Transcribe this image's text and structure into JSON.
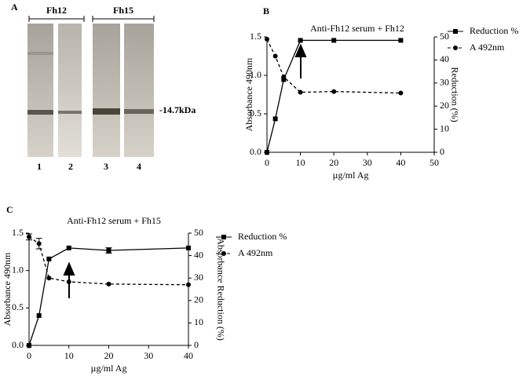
{
  "figure": {
    "panels": {
      "a": "A"
    },
    "gel": {
      "groups": [
        "Fh12",
        "Fh15"
      ],
      "lanes": [
        "1",
        "2",
        "3",
        "4"
      ],
      "marker": "-14.7kDa"
    }
  },
  "chart_data": [
    {
      "type": "line",
      "panel": "B",
      "title": "Anti-Fh12 serum + Fh12",
      "xlabel": "µg/ml Ag",
      "ylabel": "Absorbance 490nm",
      "y2label": "Reduction (%)",
      "x": [
        0,
        2.5,
        5,
        10,
        20,
        40
      ],
      "xlim": [
        0,
        50
      ],
      "xticks": [
        0,
        10,
        20,
        30,
        40,
        50
      ],
      "ylim": [
        0,
        1.5
      ],
      "yticks": [
        {
          "value": 0,
          "label": "0.0"
        },
        {
          "value": 0.5,
          "label": "0.5"
        },
        {
          "value": 1,
          "label": "1.0"
        },
        {
          "value": 1.5,
          "label": "1.5"
        }
      ],
      "y2lim": [
        0,
        50
      ],
      "y2ticks": [
        0,
        10,
        20,
        30,
        40,
        50
      ],
      "legend": "right",
      "series": [
        {
          "name": "Reduction %",
          "color": "#000000",
          "axis": "y2",
          "marker": "square",
          "dash": false,
          "values": [
            0,
            14.5,
            31.5,
            48.5,
            48.5,
            48.5
          ]
        },
        {
          "name": "A 492nm",
          "color": "#000000",
          "axis": "y",
          "marker": "circle",
          "dash": true,
          "values": [
            1.47,
            1.25,
            0.98,
            0.78,
            0.79,
            0.77
          ]
        }
      ]
    },
    {
      "type": "line",
      "panel": "C",
      "title": "Anti-Fh12 serum + Fh15",
      "xlabel": "µg/ml Ag",
      "ylabel": "Absorbance 490nm",
      "y2label": "Absorbance Reduction (%)",
      "x": [
        0,
        2.5,
        5,
        10,
        20,
        40
      ],
      "xlim": [
        0,
        40
      ],
      "xticks": [
        0,
        10,
        20,
        30,
        40
      ],
      "ylim": [
        0,
        1.5
      ],
      "yticks": [
        {
          "value": 0,
          "label": "0.0"
        },
        {
          "value": 0.5,
          "label": "0.5"
        },
        {
          "value": 1,
          "label": "1.0"
        },
        {
          "value": 1.5,
          "label": "1.5"
        }
      ],
      "y2lim": [
        0,
        50
      ],
      "y2ticks": [
        0,
        10,
        20,
        30,
        40,
        50
      ],
      "legend": "right",
      "series": [
        {
          "name": "Reduction %",
          "color": "#000000",
          "axis": "y2",
          "marker": "square",
          "dash": false,
          "values": [
            0,
            13.3,
            38.5,
            43.4,
            42.3,
            43.4
          ],
          "errors": [
            null,
            null,
            null,
            null,
            1.2,
            null
          ]
        },
        {
          "name": "A 492nm",
          "color": "#000000",
          "axis": "y",
          "marker": "circle",
          "dash": true,
          "values": [
            1.45,
            1.36,
            0.9,
            0.85,
            0.82,
            0.81
          ],
          "errors": [
            0.04,
            0.07,
            null,
            null,
            null,
            null
          ]
        }
      ]
    }
  ]
}
